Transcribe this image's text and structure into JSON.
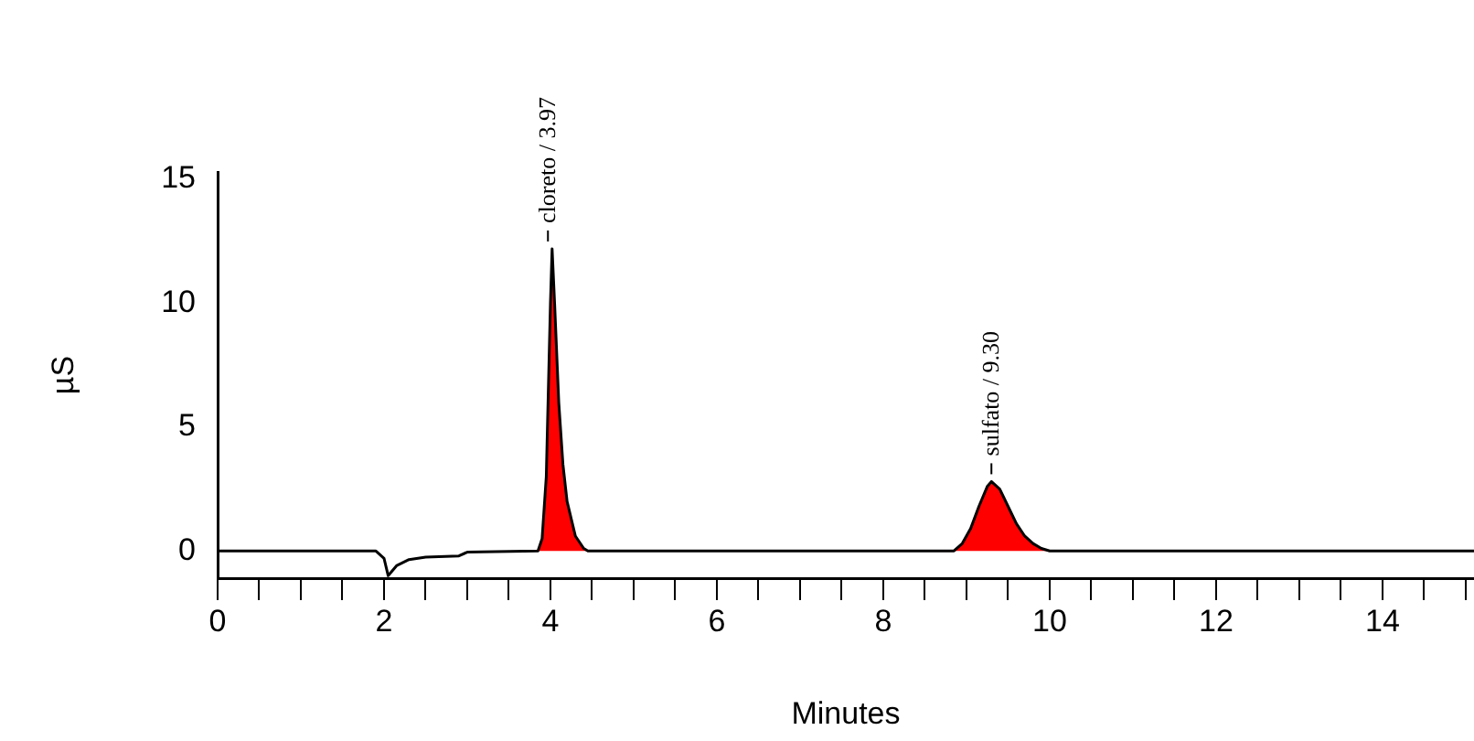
{
  "chart_data": {
    "type": "line",
    "xlabel": "Minutes",
    "ylabel": "µS",
    "xlim": [
      0,
      15.1
    ],
    "ylim": [
      -1.1,
      15.3
    ],
    "xticks": [
      0,
      {
        "value": 0.5,
        "label": null
      },
      2,
      {
        "value": 1,
        "label": null
      },
      {
        "value": 1.5,
        "label": null
      },
      {
        "value": 2.5,
        "label": null
      },
      {
        "value": 3,
        "label": null
      },
      {
        "value": 3.5,
        "label": null
      },
      4,
      {
        "value": 4.5,
        "label": null
      },
      {
        "value": 5,
        "label": null
      },
      {
        "value": 5.5,
        "label": null
      },
      6,
      {
        "value": 6.5,
        "label": null
      },
      {
        "value": 7,
        "label": null
      },
      {
        "value": 7.5,
        "label": null
      },
      8,
      {
        "value": 8.5,
        "label": null
      },
      {
        "value": 9,
        "label": null
      },
      {
        "value": 9.5,
        "label": null
      },
      10,
      {
        "value": 10.5,
        "label": null
      },
      {
        "value": 11,
        "label": null
      },
      {
        "value": 11.5,
        "label": null
      },
      12,
      {
        "value": 12.5,
        "label": null
      },
      {
        "value": 13,
        "label": null
      },
      {
        "value": 13.5,
        "label": null
      },
      14,
      {
        "value": 14.5,
        "label": null
      },
      {
        "value": 15,
        "label": null
      }
    ],
    "yticks": [
      0,
      5,
      10,
      15
    ],
    "marker": "none",
    "legend": false,
    "series": [
      {
        "color": "#000000",
        "x": [
          0,
          1.9,
          2.0,
          2.05,
          2.15,
          2.3,
          2.5,
          2.9,
          3.0,
          3.85,
          3.9,
          3.95,
          4.0,
          4.02,
          4.05,
          4.1,
          4.15,
          4.2,
          4.3,
          4.4,
          4.45,
          8.85,
          8.95,
          9.05,
          9.15,
          9.25,
          9.3,
          9.4,
          9.5,
          9.6,
          9.7,
          9.8,
          9.9,
          10.0,
          15.1
        ],
        "values": [
          0,
          0,
          -0.3,
          -1,
          -0.6,
          -0.35,
          -0.25,
          -0.2,
          -0.05,
          0,
          0.5,
          3,
          10,
          12.2,
          10,
          6,
          3.5,
          2,
          0.6,
          0.1,
          0,
          0,
          0.3,
          0.9,
          1.8,
          2.6,
          2.8,
          2.5,
          1.8,
          1.1,
          0.6,
          0.3,
          0.1,
          0,
          0
        ]
      },
      {
        "type": "area",
        "color": "#ff0000",
        "x": [
          3.85,
          3.9,
          3.95,
          4.0,
          4.02,
          4.05,
          4.1,
          4.15,
          4.2,
          4.3,
          4.4,
          4.45,
          6,
          8.85,
          8.95,
          9.05,
          9.15,
          9.25,
          9.3,
          9.4,
          9.5,
          9.6,
          9.7,
          9.8,
          9.9,
          10.0
        ],
        "values": [
          0,
          0.5,
          3,
          10,
          12.2,
          10,
          6,
          3.5,
          2,
          0.6,
          0.1,
          0,
          null,
          0,
          0.3,
          0.9,
          1.8,
          2.6,
          2.8,
          2.5,
          1.8,
          1.1,
          0.6,
          0.3,
          0.1,
          0
        ]
      }
    ],
    "annotations": [
      {
        "text": "cloreto / 3.97",
        "x": 3.97,
        "y": 12.2
      },
      {
        "text": "sulfato / 9.30",
        "x": 9.3,
        "y": 2.8
      }
    ]
  }
}
